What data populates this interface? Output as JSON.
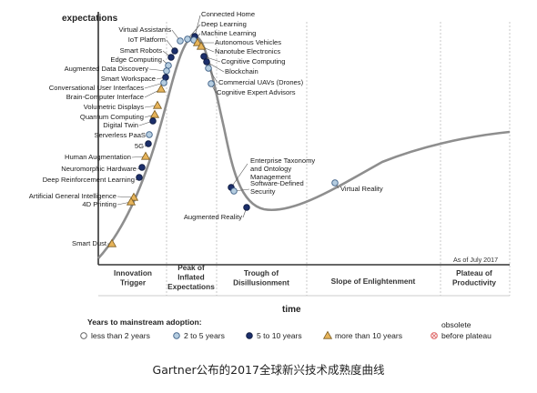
{
  "axes": {
    "y_label": "expectations",
    "x_label": "time"
  },
  "as_of": "As of July 2017",
  "phases": [
    {
      "lines": [
        "Innovation",
        "Trigger"
      ]
    },
    {
      "lines": [
        "Peak of",
        "Inflated",
        "Expectations"
      ]
    },
    {
      "lines": [
        "Trough of",
        "Disillusionment"
      ]
    },
    {
      "lines": [
        "Slope of Enlightenment"
      ]
    },
    {
      "lines": [
        "Plateau of",
        "Productivity"
      ]
    }
  ],
  "legend": {
    "title": "Years to mainstream adoption:",
    "items": [
      {
        "key": "lt2",
        "label": "less than 2 years",
        "color": "#ffffff"
      },
      {
        "key": "2to5",
        "label": "2 to 5 years",
        "color": "#b5cde0"
      },
      {
        "key": "5to10",
        "label": "5 to 10 years",
        "color": "#1c2f6b"
      },
      {
        "key": "gt10",
        "label": "more than 10 years",
        "color": "#e7b45a"
      },
      {
        "key": "obsolete",
        "label_top": "obsolete",
        "label": "before plateau",
        "color": "#e07070"
      }
    ]
  },
  "technologies": [
    {
      "name": "Connected Home",
      "class": "5to10"
    },
    {
      "name": "Deep Learning",
      "class": "2to5"
    },
    {
      "name": "Machine Learning",
      "class": "2to5"
    },
    {
      "name": "Virtual Assistants",
      "class": "2to5"
    },
    {
      "name": "IoT Platform",
      "class": "5to10"
    },
    {
      "name": "Autonomous Vehicles",
      "class": "gt10"
    },
    {
      "name": "Nanotube Electronics",
      "class": "gt10"
    },
    {
      "name": "Cognitive Computing",
      "class": "5to10"
    },
    {
      "name": "Blockchain",
      "class": "5to10"
    },
    {
      "name": "Commercial UAVs (Drones)",
      "class": "2to5"
    },
    {
      "name": "Cognitive Expert Advisors",
      "class": "2to5"
    },
    {
      "name": "Smart Robots",
      "class": "5to10"
    },
    {
      "name": "Edge Computing",
      "class": "2to5"
    },
    {
      "name": "Augmented Data Discovery",
      "class": "2to5"
    },
    {
      "name": "Smart Workspace",
      "class": "5to10"
    },
    {
      "name": "Conversational User Interfaces",
      "class": "2to5"
    },
    {
      "name": "Brain-Computer Interface",
      "class": "gt10"
    },
    {
      "name": "Volumetric Displays",
      "class": "gt10"
    },
    {
      "name": "Quantum Computing",
      "class": "gt10"
    },
    {
      "name": "Digital Twin",
      "class": "5to10"
    },
    {
      "name": "Serverless PaaS",
      "class": "2to5"
    },
    {
      "name": "5G",
      "class": "5to10"
    },
    {
      "name": "Human Augmentation",
      "class": "gt10"
    },
    {
      "name": "Neuromorphic Hardware",
      "class": "5to10"
    },
    {
      "name": "Deep Reinforcement Learning",
      "class": "5to10"
    },
    {
      "name": "Artificial General Intelligence",
      "class": "gt10"
    },
    {
      "name": "4D Printing",
      "class": "gt10"
    },
    {
      "name": "Smart Dust",
      "class": "gt10"
    },
    {
      "name": "Enterprise Taxonomy and Ontology Management",
      "class": "5to10"
    },
    {
      "name": "Software-Defined Security",
      "class": "2to5"
    },
    {
      "name": "Augmented Reality",
      "class": "5to10"
    },
    {
      "name": "Virtual Reality",
      "class": "2to5"
    }
  ],
  "caption": "Gartner公布的2017全球新兴技术成熟度曲线"
}
